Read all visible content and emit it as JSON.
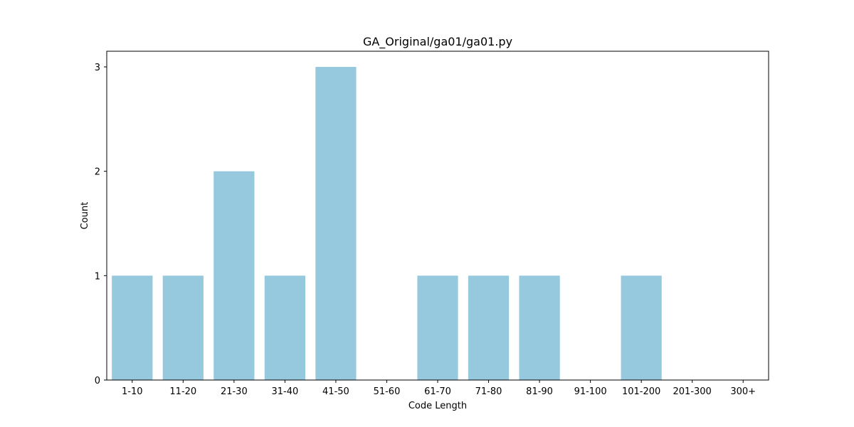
{
  "chart_data": {
    "type": "bar",
    "title": "GA_Original/ga01/ga01.py",
    "xlabel": "Code Length",
    "ylabel": "Count",
    "categories": [
      "1-10",
      "11-20",
      "21-30",
      "31-40",
      "41-50",
      "51-60",
      "61-70",
      "71-80",
      "81-90",
      "91-100",
      "101-200",
      "201-300",
      "300+"
    ],
    "values": [
      1,
      1,
      2,
      1,
      3,
      0,
      1,
      1,
      1,
      0,
      1,
      0,
      0
    ],
    "ylim": [
      0,
      3.15
    ],
    "yticks": [
      0,
      1,
      2,
      3
    ],
    "grid": false,
    "bar_color": "#96c9de"
  }
}
